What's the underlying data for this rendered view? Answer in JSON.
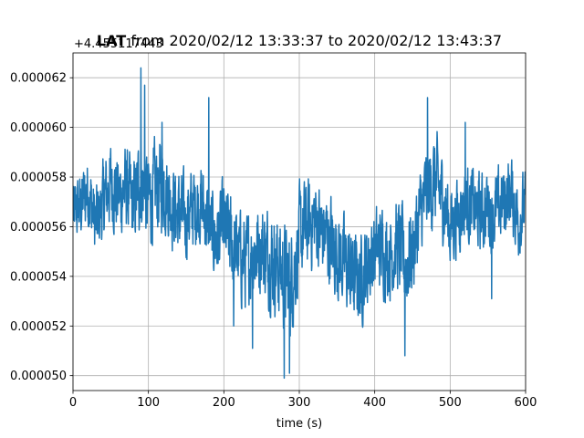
{
  "chart_data": {
    "type": "line",
    "title_prefix": "LAT",
    "title_rest": " from 2020/02/12 13:33:37 to 2020/02/12 13:43:37",
    "offset_text": "+4.455117443",
    "xlabel": "time (s)",
    "ylabel": "",
    "xlim": [
      0,
      600
    ],
    "ylim": [
      4.94e-05,
      6.3e-05
    ],
    "grid": true,
    "x_ticks": [
      0,
      100,
      200,
      300,
      400,
      500,
      600
    ],
    "x_tick_labels": [
      "0",
      "100",
      "200",
      "300",
      "400",
      "500",
      "600"
    ],
    "y_ticks": [
      5e-05,
      5.2e-05,
      5.4e-05,
      5.6e-05,
      5.8e-05,
      6e-05,
      6.2e-05
    ],
    "y_tick_labels": [
      "0.000050",
      "0.000052",
      "0.000054",
      "0.000056",
      "0.000058",
      "0.000060",
      "0.000062"
    ],
    "series": [
      {
        "color": "#1f77b4",
        "x": [
          0,
          10,
          20,
          30,
          40,
          50,
          60,
          70,
          80,
          90,
          100,
          110,
          120,
          130,
          140,
          150,
          160,
          170,
          180,
          190,
          200,
          210,
          220,
          230,
          240,
          250,
          260,
          270,
          280,
          290,
          300,
          310,
          320,
          330,
          340,
          350,
          360,
          370,
          380,
          390,
          400,
          410,
          420,
          430,
          440,
          450,
          460,
          470,
          480,
          490,
          500,
          510,
          520,
          530,
          540,
          550,
          560,
          570,
          580,
          590,
          600
        ],
        "y": [
          5.65e-05,
          5.68e-05,
          5.75e-05,
          5.6e-05,
          5.7e-05,
          5.78e-05,
          5.72e-05,
          5.75e-05,
          5.68e-05,
          5.8e-05,
          5.7e-05,
          5.75e-05,
          5.78e-05,
          5.7e-05,
          5.65e-05,
          5.63e-05,
          5.68e-05,
          5.7e-05,
          5.6e-05,
          5.55e-05,
          5.6e-05,
          5.53e-05,
          5.48e-05,
          5.45e-05,
          5.5e-05,
          5.52e-05,
          5.48e-05,
          5.45e-05,
          5.4e-05,
          5.38e-05,
          5.55e-05,
          5.6e-05,
          5.63e-05,
          5.58e-05,
          5.55e-05,
          5.5e-05,
          5.45e-05,
          5.4e-05,
          5.38e-05,
          5.45e-05,
          5.5e-05,
          5.52e-05,
          5.48e-05,
          5.53e-05,
          5.45e-05,
          5.5e-05,
          5.65e-05,
          5.75e-05,
          5.78e-05,
          5.72e-05,
          5.6e-05,
          5.65e-05,
          5.7e-05,
          5.68e-05,
          5.65e-05,
          5.68e-05,
          5.65e-05,
          5.7e-05,
          5.75e-05,
          5.63e-05,
          5.68e-05
        ],
        "amplitude": [
          1.6e-06,
          1.8e-06,
          2e-06,
          2e-06,
          2e-06,
          2.2e-06,
          2.2e-06,
          2.2e-06,
          2.2e-06,
          2.6e-06,
          2.5e-06,
          2.4e-06,
          2.4e-06,
          2.2e-06,
          2.2e-06,
          2.1e-06,
          2.1e-06,
          2.1e-06,
          2.1e-06,
          2.2e-06,
          2.3e-06,
          2.4e-06,
          2.4e-06,
          2.4e-06,
          2.4e-06,
          2.4e-06,
          2.5e-06,
          2.6e-06,
          2.7e-06,
          2.7e-06,
          2.5e-06,
          2.4e-06,
          2.4e-06,
          2.4e-06,
          2.4e-06,
          2.4e-06,
          2.4e-06,
          2.4e-06,
          2.3e-06,
          2.3e-06,
          2.2e-06,
          2.2e-06,
          2.2e-06,
          2.4e-06,
          2.6e-06,
          2.4e-06,
          2.2e-06,
          2.4e-06,
          2.4e-06,
          2.2e-06,
          2.1e-06,
          2e-06,
          2e-06,
          2e-06,
          2e-06,
          2e-06,
          2e-06,
          2e-06,
          2e-06,
          2e-06,
          1.8e-06
        ],
        "peaks": [
          [
            90,
            6.24e-05
          ],
          [
            118,
            6.02e-05
          ],
          [
            180,
            6.12e-05
          ],
          [
            95,
            6.17e-05
          ],
          [
            280,
            4.99e-05
          ],
          [
            287,
            5.01e-05
          ],
          [
            440,
            5.08e-05
          ],
          [
            470,
            6.12e-05
          ],
          [
            520,
            6.02e-05
          ],
          [
            555,
            5.31e-05
          ],
          [
            213,
            5.2e-05
          ],
          [
            238,
            5.11e-05
          ]
        ]
      }
    ]
  }
}
